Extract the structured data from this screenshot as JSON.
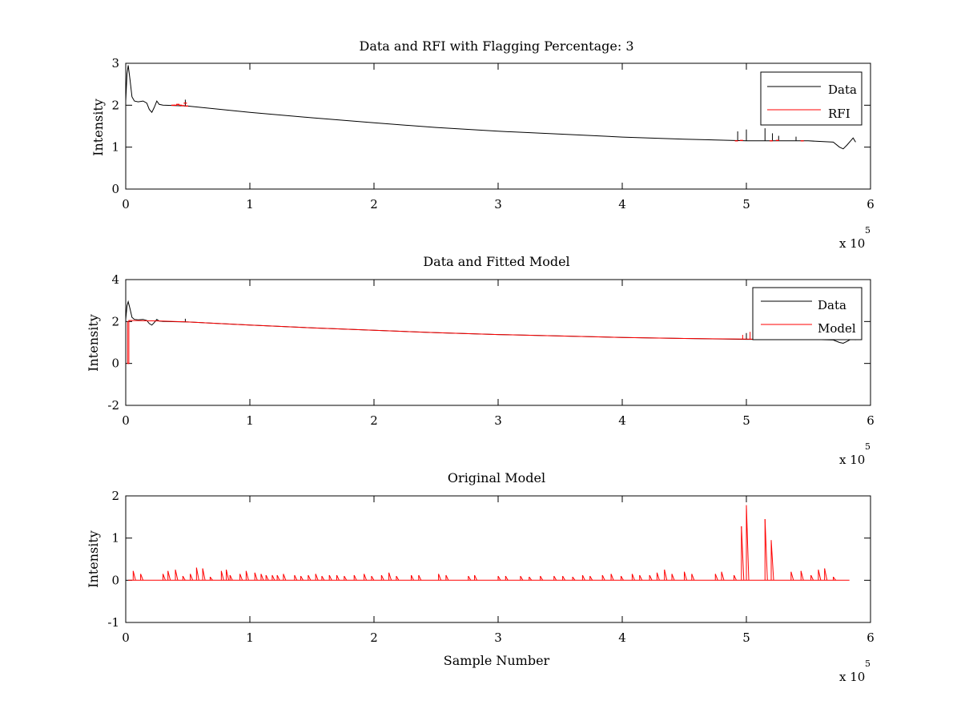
{
  "chart_data": [
    {
      "id": "p1",
      "type": "line",
      "title": "Data and RFI with Flagging Percentage: 3",
      "xlabel": "",
      "ylabel": "Intensity",
      "xlim": [
        0,
        600000
      ],
      "ylim": [
        0,
        3
      ],
      "xticks": [
        0,
        1,
        2,
        3,
        4,
        5,
        6
      ],
      "yticks": [
        0,
        1,
        2,
        3
      ],
      "x_multiplier": {
        "base": "x 10",
        "exp": "5"
      },
      "legend": {
        "placement": "top-right",
        "entries": [
          {
            "name": "Data",
            "color": "#000000"
          },
          {
            "name": "RFI",
            "color": "#ff0000"
          }
        ]
      },
      "series": [
        {
          "name": "Data",
          "color": "#000000",
          "kind": "line",
          "points": [
            [
              0,
              2.1
            ],
            [
              1000,
              2.75
            ],
            [
              2000,
              2.95
            ],
            [
              3500,
              2.6
            ],
            [
              5000,
              2.2
            ],
            [
              7000,
              2.1
            ],
            [
              10000,
              2.08
            ],
            [
              14000,
              2.1
            ],
            [
              17000,
              2.05
            ],
            [
              19000,
              1.9
            ],
            [
              21000,
              1.83
            ],
            [
              23000,
              1.95
            ],
            [
              25000,
              2.1
            ],
            [
              27000,
              2.02
            ],
            [
              30000,
              2.0
            ],
            [
              50000,
              1.98
            ],
            [
              100000,
              1.83
            ],
            [
              150000,
              1.7
            ],
            [
              200000,
              1.58
            ],
            [
              250000,
              1.47
            ],
            [
              300000,
              1.38
            ],
            [
              350000,
              1.31
            ],
            [
              400000,
              1.24
            ],
            [
              450000,
              1.19
            ],
            [
              500000,
              1.15
            ],
            [
              550000,
              1.15
            ],
            [
              570000,
              1.12
            ],
            [
              575000,
              1.0
            ],
            [
              578000,
              0.96
            ],
            [
              581000,
              1.05
            ],
            [
              584000,
              1.15
            ],
            [
              586000,
              1.22
            ],
            [
              588000,
              1.12
            ]
          ],
          "spikes": [
            [
              48000,
              0.15
            ],
            [
              493000,
              0.22
            ],
            [
              500000,
              0.27
            ],
            [
              515000,
              0.3
            ],
            [
              521000,
              0.18
            ],
            [
              526000,
              0.12
            ],
            [
              540000,
              0.1
            ]
          ]
        },
        {
          "name": "RFI",
          "color": "#ff0000",
          "kind": "flags",
          "points": [
            [
              38000,
              2.0
            ],
            [
              40000,
              2.0
            ],
            [
              42000,
              2.02
            ],
            [
              44000,
              2.0
            ],
            [
              46000,
              1.99
            ],
            [
              48000,
              2.05
            ],
            [
              49000,
              1.98
            ],
            [
              492000,
              1.15
            ],
            [
              496000,
              1.16
            ],
            [
              520000,
              1.15
            ],
            [
              525000,
              1.16
            ],
            [
              545000,
              1.15
            ]
          ]
        }
      ]
    },
    {
      "id": "p2",
      "type": "line",
      "title": "Data and Fitted Model",
      "xlabel": "",
      "ylabel": "Intensity",
      "xlim": [
        0,
        600000
      ],
      "ylim": [
        -2,
        4
      ],
      "xticks": [
        0,
        1,
        2,
        3,
        4,
        5,
        6
      ],
      "yticks": [
        -2,
        0,
        2,
        4
      ],
      "x_multiplier": {
        "base": "x 10",
        "exp": "5"
      },
      "legend": {
        "placement": "top-right",
        "entries": [
          {
            "name": "Data",
            "color": "#000000"
          },
          {
            "name": "Model",
            "color": "#ff0000"
          }
        ]
      },
      "series": [
        {
          "name": "Data",
          "color": "#000000",
          "kind": "line",
          "points": [
            [
              0,
              2.1
            ],
            [
              1000,
              2.75
            ],
            [
              2000,
              2.95
            ],
            [
              3500,
              2.6
            ],
            [
              5000,
              2.2
            ],
            [
              7000,
              2.1
            ],
            [
              10000,
              2.08
            ],
            [
              14000,
              2.1
            ],
            [
              17000,
              2.05
            ],
            [
              19000,
              1.9
            ],
            [
              21000,
              1.83
            ],
            [
              23000,
              1.95
            ],
            [
              25000,
              2.1
            ],
            [
              27000,
              2.02
            ],
            [
              30000,
              2.0
            ],
            [
              50000,
              1.98
            ],
            [
              100000,
              1.83
            ],
            [
              150000,
              1.7
            ],
            [
              200000,
              1.58
            ],
            [
              250000,
              1.47
            ],
            [
              300000,
              1.38
            ],
            [
              350000,
              1.31
            ],
            [
              400000,
              1.24
            ],
            [
              450000,
              1.19
            ],
            [
              500000,
              1.15
            ],
            [
              550000,
              1.15
            ],
            [
              570000,
              1.12
            ],
            [
              575000,
              1.0
            ],
            [
              578000,
              0.96
            ],
            [
              581000,
              1.05
            ],
            [
              584000,
              1.15
            ],
            [
              586000,
              1.22
            ],
            [
              588000,
              1.12
            ]
          ],
          "spikes": [
            [
              48000,
              0.15
            ],
            [
              500000,
              0.3
            ],
            [
              515000,
              0.3
            ]
          ]
        },
        {
          "name": "Model",
          "color": "#ff0000",
          "kind": "line",
          "points": [
            [
              1500,
              2.0
            ],
            [
              1500,
              0.0
            ],
            [
              2500,
              0.0
            ],
            [
              2500,
              2.05
            ],
            [
              30000,
              2.02
            ],
            [
              50000,
              1.98
            ],
            [
              100000,
              1.83
            ],
            [
              150000,
              1.7
            ],
            [
              200000,
              1.58
            ],
            [
              250000,
              1.47
            ],
            [
              300000,
              1.38
            ],
            [
              350000,
              1.31
            ],
            [
              400000,
              1.24
            ],
            [
              450000,
              1.19
            ],
            [
              500000,
              1.16
            ],
            [
              515000,
              1.15
            ]
          ],
          "spikes": [
            [
              497000,
              0.2
            ],
            [
              503000,
              0.35
            ],
            [
              515000,
              0.2
            ]
          ]
        }
      ]
    },
    {
      "id": "p3",
      "type": "line",
      "title": "Original Model",
      "xlabel": "Sample Number",
      "ylabel": "Intensity",
      "xlim": [
        0,
        600000
      ],
      "ylim": [
        -1,
        2
      ],
      "xticks": [
        0,
        1,
        2,
        3,
        4,
        5,
        6
      ],
      "yticks": [
        -1,
        0,
        1,
        2
      ],
      "x_multiplier": {
        "base": "x 10",
        "exp": "5"
      },
      "legend": null,
      "series": [
        {
          "name": "",
          "color": "#ff0000",
          "kind": "baseline-spikes",
          "points": [
            [
              2000,
              0.0
            ],
            [
              583000,
              0.0
            ]
          ],
          "spikes": [
            [
              6000,
              0.22
            ],
            [
              12000,
              0.15
            ],
            [
              30000,
              0.15
            ],
            [
              34000,
              0.22
            ],
            [
              40000,
              0.25
            ],
            [
              46000,
              0.1
            ],
            [
              52000,
              0.15
            ],
            [
              57000,
              0.3
            ],
            [
              62000,
              0.28
            ],
            [
              68000,
              0.08
            ],
            [
              77000,
              0.22
            ],
            [
              81000,
              0.25
            ],
            [
              84000,
              0.12
            ],
            [
              92000,
              0.15
            ],
            [
              97000,
              0.22
            ],
            [
              104000,
              0.18
            ],
            [
              109000,
              0.15
            ],
            [
              113000,
              0.12
            ],
            [
              118000,
              0.12
            ],
            [
              122000,
              0.12
            ],
            [
              127000,
              0.15
            ],
            [
              136000,
              0.12
            ],
            [
              141000,
              0.1
            ],
            [
              147000,
              0.12
            ],
            [
              153000,
              0.15
            ],
            [
              158000,
              0.1
            ],
            [
              164000,
              0.12
            ],
            [
              170000,
              0.12
            ],
            [
              176000,
              0.1
            ],
            [
              184000,
              0.12
            ],
            [
              192000,
              0.15
            ],
            [
              198000,
              0.1
            ],
            [
              206000,
              0.12
            ],
            [
              212000,
              0.18
            ],
            [
              218000,
              0.1
            ],
            [
              230000,
              0.12
            ],
            [
              236000,
              0.12
            ],
            [
              252000,
              0.15
            ],
            [
              258000,
              0.12
            ],
            [
              276000,
              0.1
            ],
            [
              281000,
              0.12
            ],
            [
              300000,
              0.1
            ],
            [
              306000,
              0.1
            ],
            [
              318000,
              0.1
            ],
            [
              325000,
              0.08
            ],
            [
              334000,
              0.1
            ],
            [
              345000,
              0.1
            ],
            [
              352000,
              0.1
            ],
            [
              360000,
              0.08
            ],
            [
              368000,
              0.12
            ],
            [
              374000,
              0.1
            ],
            [
              384000,
              0.12
            ],
            [
              391000,
              0.15
            ],
            [
              399000,
              0.1
            ],
            [
              408000,
              0.15
            ],
            [
              414000,
              0.12
            ],
            [
              422000,
              0.12
            ],
            [
              428000,
              0.18
            ],
            [
              434000,
              0.25
            ],
            [
              440000,
              0.15
            ],
            [
              450000,
              0.2
            ],
            [
              456000,
              0.15
            ],
            [
              475000,
              0.15
            ],
            [
              480000,
              0.2
            ],
            [
              490000,
              0.12
            ],
            [
              496000,
              1.28
            ],
            [
              500000,
              1.78
            ],
            [
              515000,
              1.45
            ],
            [
              520000,
              0.95
            ],
            [
              536000,
              0.2
            ],
            [
              544000,
              0.22
            ],
            [
              552000,
              0.12
            ],
            [
              558000,
              0.25
            ],
            [
              563000,
              0.28
            ],
            [
              570000,
              0.08
            ]
          ]
        }
      ]
    }
  ]
}
